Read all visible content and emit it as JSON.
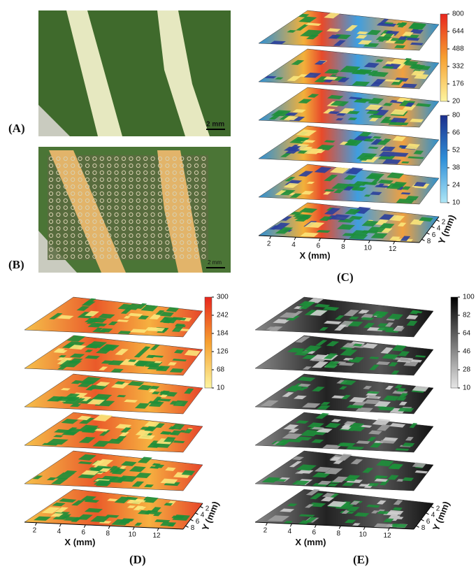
{
  "panels": {
    "a": {
      "label": "(A)",
      "scale_bar": "2 mm"
    },
    "b": {
      "label": "(B)",
      "scale_bar": "2 mm"
    },
    "c": {
      "label": "(C)",
      "colorbars": [
        [
          800,
          644,
          488,
          332,
          176,
          20
        ],
        [
          80,
          66,
          52,
          38,
          24,
          10
        ]
      ],
      "x_axis": {
        "title": "X (mm)",
        "ticks": [
          2,
          4,
          6,
          8,
          10,
          12
        ]
      },
      "y_axis": {
        "title": "Y (mm)",
        "ticks": [
          2,
          4,
          6,
          8
        ]
      }
    },
    "d": {
      "label": "(D)",
      "colorbars": [
        [
          300,
          242,
          184,
          126,
          68,
          10
        ]
      ],
      "x_axis": {
        "title": "X (mm)",
        "ticks": [
          2,
          4,
          6,
          8,
          10,
          12
        ]
      },
      "y_axis": {
        "title": "Y (mm)",
        "ticks": [
          2,
          4,
          6,
          8
        ]
      }
    },
    "e": {
      "label": "(E)",
      "colorbars": [
        [
          100,
          82,
          64,
          46,
          28,
          10
        ]
      ],
      "x_axis": {
        "title": "X (mm)",
        "ticks": [
          2,
          4,
          6,
          8,
          10,
          12
        ]
      },
      "y_axis": {
        "title": "Y (mm)",
        "ticks": [
          2,
          4,
          6,
          8
        ]
      }
    }
  }
}
